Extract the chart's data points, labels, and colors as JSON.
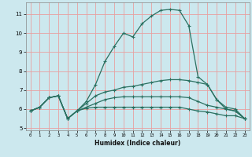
{
  "title": "",
  "xlabel": "Humidex (Indice chaleur)",
  "bg_color": "#cce8ee",
  "grid_color_major": "#e8a0a0",
  "line_color": "#2a7060",
  "xlim": [
    -0.5,
    23.5
  ],
  "ylim": [
    4.9,
    11.6
  ],
  "xticks": [
    0,
    1,
    2,
    3,
    4,
    5,
    6,
    7,
    8,
    9,
    10,
    11,
    12,
    13,
    14,
    15,
    16,
    17,
    18,
    19,
    20,
    21,
    22,
    23
  ],
  "yticks": [
    5,
    6,
    7,
    8,
    9,
    10,
    11
  ],
  "lines": [
    [
      5.9,
      6.1,
      6.6,
      6.7,
      5.5,
      5.9,
      6.4,
      7.3,
      8.5,
      9.3,
      10.0,
      9.8,
      10.5,
      10.9,
      11.2,
      11.25,
      11.2,
      10.4,
      7.7,
      7.3,
      6.5,
      6.0,
      5.9,
      5.5
    ],
    [
      5.9,
      6.1,
      6.6,
      6.7,
      5.5,
      5.9,
      6.3,
      6.7,
      6.9,
      7.0,
      7.15,
      7.2,
      7.3,
      7.4,
      7.5,
      7.55,
      7.55,
      7.5,
      7.4,
      7.3,
      6.5,
      6.1,
      6.0,
      5.5
    ],
    [
      5.9,
      6.1,
      6.6,
      6.7,
      5.5,
      5.9,
      6.1,
      6.3,
      6.5,
      6.6,
      6.65,
      6.65,
      6.65,
      6.65,
      6.65,
      6.65,
      6.65,
      6.6,
      6.4,
      6.2,
      6.1,
      6.0,
      5.9,
      5.5
    ],
    [
      5.9,
      6.1,
      6.6,
      6.7,
      5.5,
      5.9,
      6.05,
      6.1,
      6.1,
      6.1,
      6.1,
      6.1,
      6.1,
      6.1,
      6.1,
      6.1,
      6.1,
      6.0,
      5.9,
      5.85,
      5.75,
      5.65,
      5.65,
      5.5
    ]
  ]
}
